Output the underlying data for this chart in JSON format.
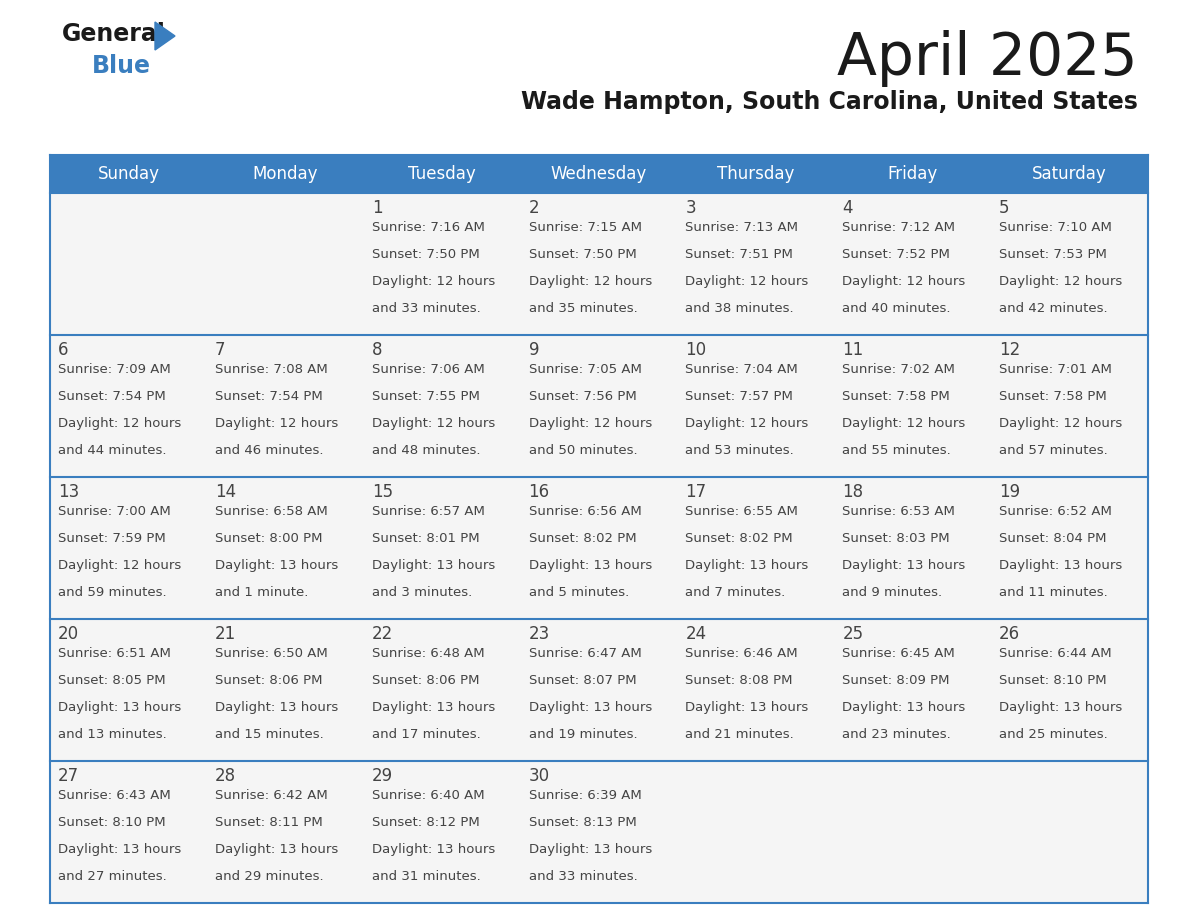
{
  "title": "April 2025",
  "subtitle": "Wade Hampton, South Carolina, United States",
  "header_bg_color": "#3a7ebf",
  "header_text_color": "#ffffff",
  "cell_bg_color": "#f5f5f5",
  "border_color": "#3a7ebf",
  "day_headers": [
    "Sunday",
    "Monday",
    "Tuesday",
    "Wednesday",
    "Thursday",
    "Friday",
    "Saturday"
  ],
  "title_color": "#1a1a1a",
  "subtitle_color": "#1a1a1a",
  "cell_text_color": "#444444",
  "logo_general_color": "#1a1a1a",
  "logo_blue_color": "#3a7ebf",
  "logo_triangle_color": "#3a7ebf",
  "days": [
    {
      "day": 1,
      "col": 2,
      "row": 0,
      "sunrise": "7:16 AM",
      "sunset": "7:50 PM",
      "daylight_line1": "Daylight: 12 hours",
      "daylight_line2": "and 33 minutes."
    },
    {
      "day": 2,
      "col": 3,
      "row": 0,
      "sunrise": "7:15 AM",
      "sunset": "7:50 PM",
      "daylight_line1": "Daylight: 12 hours",
      "daylight_line2": "and 35 minutes."
    },
    {
      "day": 3,
      "col": 4,
      "row": 0,
      "sunrise": "7:13 AM",
      "sunset": "7:51 PM",
      "daylight_line1": "Daylight: 12 hours",
      "daylight_line2": "and 38 minutes."
    },
    {
      "day": 4,
      "col": 5,
      "row": 0,
      "sunrise": "7:12 AM",
      "sunset": "7:52 PM",
      "daylight_line1": "Daylight: 12 hours",
      "daylight_line2": "and 40 minutes."
    },
    {
      "day": 5,
      "col": 6,
      "row": 0,
      "sunrise": "7:10 AM",
      "sunset": "7:53 PM",
      "daylight_line1": "Daylight: 12 hours",
      "daylight_line2": "and 42 minutes."
    },
    {
      "day": 6,
      "col": 0,
      "row": 1,
      "sunrise": "7:09 AM",
      "sunset": "7:54 PM",
      "daylight_line1": "Daylight: 12 hours",
      "daylight_line2": "and 44 minutes."
    },
    {
      "day": 7,
      "col": 1,
      "row": 1,
      "sunrise": "7:08 AM",
      "sunset": "7:54 PM",
      "daylight_line1": "Daylight: 12 hours",
      "daylight_line2": "and 46 minutes."
    },
    {
      "day": 8,
      "col": 2,
      "row": 1,
      "sunrise": "7:06 AM",
      "sunset": "7:55 PM",
      "daylight_line1": "Daylight: 12 hours",
      "daylight_line2": "and 48 minutes."
    },
    {
      "day": 9,
      "col": 3,
      "row": 1,
      "sunrise": "7:05 AM",
      "sunset": "7:56 PM",
      "daylight_line1": "Daylight: 12 hours",
      "daylight_line2": "and 50 minutes."
    },
    {
      "day": 10,
      "col": 4,
      "row": 1,
      "sunrise": "7:04 AM",
      "sunset": "7:57 PM",
      "daylight_line1": "Daylight: 12 hours",
      "daylight_line2": "and 53 minutes."
    },
    {
      "day": 11,
      "col": 5,
      "row": 1,
      "sunrise": "7:02 AM",
      "sunset": "7:58 PM",
      "daylight_line1": "Daylight: 12 hours",
      "daylight_line2": "and 55 minutes."
    },
    {
      "day": 12,
      "col": 6,
      "row": 1,
      "sunrise": "7:01 AM",
      "sunset": "7:58 PM",
      "daylight_line1": "Daylight: 12 hours",
      "daylight_line2": "and 57 minutes."
    },
    {
      "day": 13,
      "col": 0,
      "row": 2,
      "sunrise": "7:00 AM",
      "sunset": "7:59 PM",
      "daylight_line1": "Daylight: 12 hours",
      "daylight_line2": "and 59 minutes."
    },
    {
      "day": 14,
      "col": 1,
      "row": 2,
      "sunrise": "6:58 AM",
      "sunset": "8:00 PM",
      "daylight_line1": "Daylight: 13 hours",
      "daylight_line2": "and 1 minute."
    },
    {
      "day": 15,
      "col": 2,
      "row": 2,
      "sunrise": "6:57 AM",
      "sunset": "8:01 PM",
      "daylight_line1": "Daylight: 13 hours",
      "daylight_line2": "and 3 minutes."
    },
    {
      "day": 16,
      "col": 3,
      "row": 2,
      "sunrise": "6:56 AM",
      "sunset": "8:02 PM",
      "daylight_line1": "Daylight: 13 hours",
      "daylight_line2": "and 5 minutes."
    },
    {
      "day": 17,
      "col": 4,
      "row": 2,
      "sunrise": "6:55 AM",
      "sunset": "8:02 PM",
      "daylight_line1": "Daylight: 13 hours",
      "daylight_line2": "and 7 minutes."
    },
    {
      "day": 18,
      "col": 5,
      "row": 2,
      "sunrise": "6:53 AM",
      "sunset": "8:03 PM",
      "daylight_line1": "Daylight: 13 hours",
      "daylight_line2": "and 9 minutes."
    },
    {
      "day": 19,
      "col": 6,
      "row": 2,
      "sunrise": "6:52 AM",
      "sunset": "8:04 PM",
      "daylight_line1": "Daylight: 13 hours",
      "daylight_line2": "and 11 minutes."
    },
    {
      "day": 20,
      "col": 0,
      "row": 3,
      "sunrise": "6:51 AM",
      "sunset": "8:05 PM",
      "daylight_line1": "Daylight: 13 hours",
      "daylight_line2": "and 13 minutes."
    },
    {
      "day": 21,
      "col": 1,
      "row": 3,
      "sunrise": "6:50 AM",
      "sunset": "8:06 PM",
      "daylight_line1": "Daylight: 13 hours",
      "daylight_line2": "and 15 minutes."
    },
    {
      "day": 22,
      "col": 2,
      "row": 3,
      "sunrise": "6:48 AM",
      "sunset": "8:06 PM",
      "daylight_line1": "Daylight: 13 hours",
      "daylight_line2": "and 17 minutes."
    },
    {
      "day": 23,
      "col": 3,
      "row": 3,
      "sunrise": "6:47 AM",
      "sunset": "8:07 PM",
      "daylight_line1": "Daylight: 13 hours",
      "daylight_line2": "and 19 minutes."
    },
    {
      "day": 24,
      "col": 4,
      "row": 3,
      "sunrise": "6:46 AM",
      "sunset": "8:08 PM",
      "daylight_line1": "Daylight: 13 hours",
      "daylight_line2": "and 21 minutes."
    },
    {
      "day": 25,
      "col": 5,
      "row": 3,
      "sunrise": "6:45 AM",
      "sunset": "8:09 PM",
      "daylight_line1": "Daylight: 13 hours",
      "daylight_line2": "and 23 minutes."
    },
    {
      "day": 26,
      "col": 6,
      "row": 3,
      "sunrise": "6:44 AM",
      "sunset": "8:10 PM",
      "daylight_line1": "Daylight: 13 hours",
      "daylight_line2": "and 25 minutes."
    },
    {
      "day": 27,
      "col": 0,
      "row": 4,
      "sunrise": "6:43 AM",
      "sunset": "8:10 PM",
      "daylight_line1": "Daylight: 13 hours",
      "daylight_line2": "and 27 minutes."
    },
    {
      "day": 28,
      "col": 1,
      "row": 4,
      "sunrise": "6:42 AM",
      "sunset": "8:11 PM",
      "daylight_line1": "Daylight: 13 hours",
      "daylight_line2": "and 29 minutes."
    },
    {
      "day": 29,
      "col": 2,
      "row": 4,
      "sunrise": "6:40 AM",
      "sunset": "8:12 PM",
      "daylight_line1": "Daylight: 13 hours",
      "daylight_line2": "and 31 minutes."
    },
    {
      "day": 30,
      "col": 3,
      "row": 4,
      "sunrise": "6:39 AM",
      "sunset": "8:13 PM",
      "daylight_line1": "Daylight: 13 hours",
      "daylight_line2": "and 33 minutes."
    }
  ]
}
